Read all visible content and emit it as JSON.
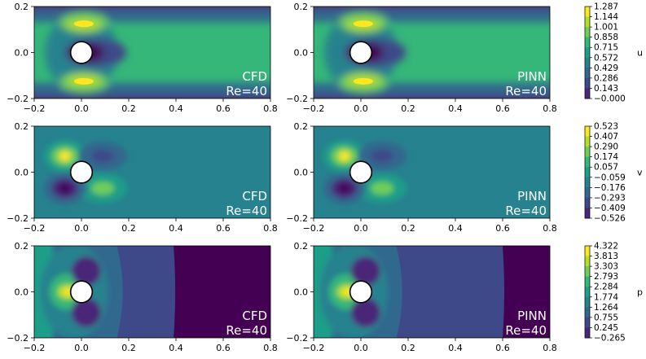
{
  "chart_data": [
    {
      "type": "heatmap",
      "field": "u",
      "method": "CFD",
      "annotation_line1": "CFD",
      "annotation_line2": "Re=40",
      "xlim": [
        -0.2,
        0.8
      ],
      "ylim": [
        -0.2,
        0.2
      ],
      "x_ticks": [
        "−0.2",
        "0.0",
        "0.2",
        "0.4",
        "0.6",
        "0.8"
      ],
      "y_ticks": [
        "0.2",
        "0.0",
        "−0.2"
      ],
      "cylinder": {
        "center": [
          0.0,
          0.0
        ],
        "radius": 0.05
      }
    },
    {
      "type": "heatmap",
      "field": "u",
      "method": "PINN",
      "annotation_line1": "PINN",
      "annotation_line2": "Re=40",
      "xlim": [
        -0.2,
        0.8
      ],
      "ylim": [
        -0.2,
        0.2
      ],
      "x_ticks": [
        "−0.2",
        "0.0",
        "0.2",
        "0.4",
        "0.6",
        "0.8"
      ],
      "y_ticks": [
        "0.2",
        "0.0",
        "−0.2"
      ],
      "cylinder": {
        "center": [
          0.0,
          0.0
        ],
        "radius": 0.05
      }
    },
    {
      "type": "heatmap",
      "field": "v",
      "method": "CFD",
      "annotation_line1": "CFD",
      "annotation_line2": "Re=40",
      "xlim": [
        -0.2,
        0.8
      ],
      "ylim": [
        -0.2,
        0.2
      ],
      "x_ticks": [
        "−0.2",
        "0.0",
        "0.2",
        "0.4",
        "0.6",
        "0.8"
      ],
      "y_ticks": [
        "0.2",
        "0.0",
        "−0.2"
      ],
      "cylinder": {
        "center": [
          0.0,
          0.0
        ],
        "radius": 0.05
      }
    },
    {
      "type": "heatmap",
      "field": "v",
      "method": "PINN",
      "annotation_line1": "PINN",
      "annotation_line2": "Re=40",
      "xlim": [
        -0.2,
        0.8
      ],
      "ylim": [
        -0.2,
        0.2
      ],
      "x_ticks": [
        "−0.2",
        "0.0",
        "0.2",
        "0.4",
        "0.6",
        "0.8"
      ],
      "y_ticks": [
        "0.2",
        "0.0",
        "−0.2"
      ],
      "cylinder": {
        "center": [
          0.0,
          0.0
        ],
        "radius": 0.05
      }
    },
    {
      "type": "heatmap",
      "field": "p",
      "method": "CFD",
      "annotation_line1": "CFD",
      "annotation_line2": "Re=40",
      "xlim": [
        -0.2,
        0.8
      ],
      "ylim": [
        -0.2,
        0.2
      ],
      "x_ticks": [
        "−0.2",
        "0.0",
        "0.2",
        "0.4",
        "0.6",
        "0.8"
      ],
      "y_ticks": [
        "0.2",
        "0.0",
        "−0.2"
      ],
      "cylinder": {
        "center": [
          0.0,
          0.0
        ],
        "radius": 0.05
      },
      "low_pressure_boundary_x": 0.39
    },
    {
      "type": "heatmap",
      "field": "p",
      "method": "PINN",
      "annotation_line1": "PINN",
      "annotation_line2": "Re=40",
      "xlim": [
        -0.2,
        0.8
      ],
      "ylim": [
        -0.2,
        0.2
      ],
      "x_ticks": [
        "−0.2",
        "0.0",
        "0.2",
        "0.4",
        "0.6",
        "0.8"
      ],
      "y_ticks": [
        "0.2",
        "0.0",
        "−0.2"
      ],
      "cylinder": {
        "center": [
          0.0,
          0.0
        ],
        "radius": 0.05
      },
      "low_pressure_boundary_x": 0.6
    }
  ],
  "colorbars": [
    {
      "field": "u",
      "label": "u",
      "ticks": [
        "1.287",
        "1.144",
        "1.001",
        "0.858",
        "0.715",
        "0.572",
        "0.429",
        "0.286",
        "0.143",
        "−0.000"
      ],
      "range": [
        -0.0,
        1.287
      ]
    },
    {
      "field": "v",
      "label": "v",
      "ticks": [
        "0.523",
        "0.407",
        "0.290",
        "0.174",
        "0.057",
        "−0.059",
        "−0.176",
        "−0.293",
        "−0.409",
        "−0.526"
      ],
      "range": [
        -0.526,
        0.523
      ]
    },
    {
      "field": "p",
      "label": "p",
      "ticks": [
        "4.322",
        "3.813",
        "3.303",
        "2.793",
        "2.284",
        "1.774",
        "1.264",
        "0.755",
        "0.245",
        "−0.265"
      ],
      "range": [
        -0.265,
        4.322
      ]
    }
  ],
  "colors": {
    "viridis": [
      "#440154",
      "#482878",
      "#3e4989",
      "#31688e",
      "#26828e",
      "#1f9e89",
      "#35b779",
      "#6ece58",
      "#b5de2b",
      "#fde725"
    ]
  }
}
